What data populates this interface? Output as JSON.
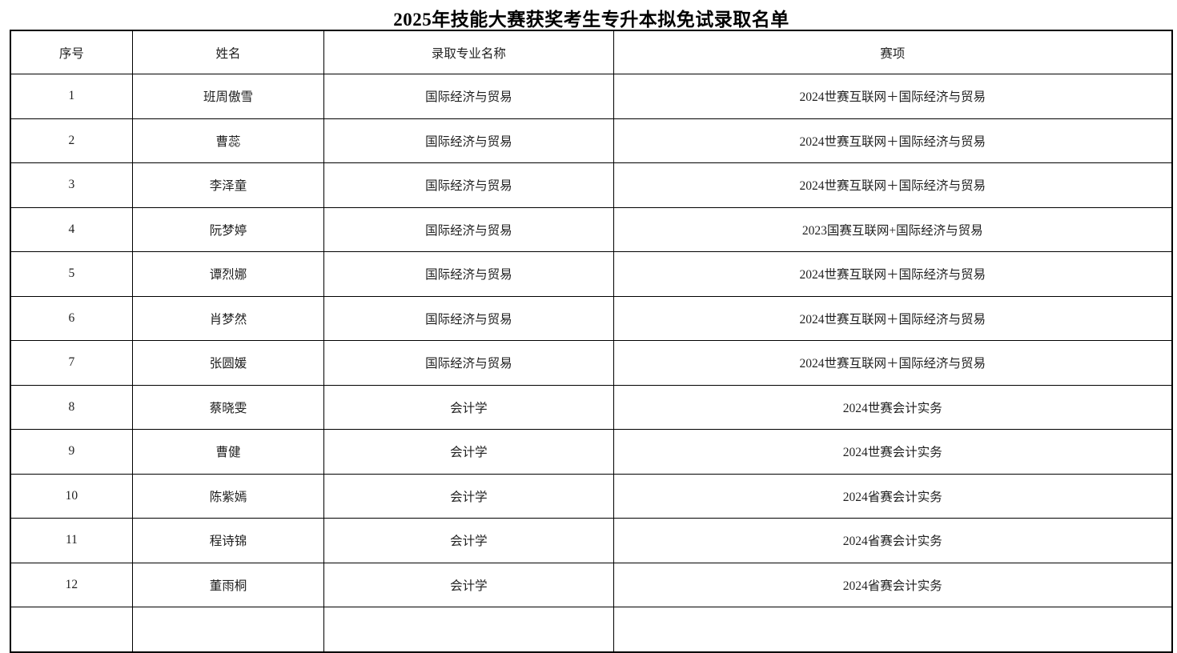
{
  "page": {
    "title": "2025年技能大赛获奖考生专升本拟免试录取名单"
  },
  "table": {
    "headers": [
      "序号",
      "姓名",
      "录取专业名称",
      "赛项"
    ],
    "rows": [
      {
        "no": "1",
        "name": "班周傲雪",
        "major": "国际经济与贸易",
        "event": "2024世赛互联网＋国际经济与贸易"
      },
      {
        "no": "2",
        "name": "曹蕊",
        "major": "国际经济与贸易",
        "event": "2024世赛互联网＋国际经济与贸易"
      },
      {
        "no": "3",
        "name": "李泽童",
        "major": "国际经济与贸易",
        "event": "2024世赛互联网＋国际经济与贸易"
      },
      {
        "no": "4",
        "name": "阮梦婷",
        "major": "国际经济与贸易",
        "event": "2023国赛互联网+国际经济与贸易"
      },
      {
        "no": "5",
        "name": "谭烈娜",
        "major": "国际经济与贸易",
        "event": "2024世赛互联网＋国际经济与贸易"
      },
      {
        "no": "6",
        "name": "肖梦然",
        "major": "国际经济与贸易",
        "event": "2024世赛互联网＋国际经济与贸易"
      },
      {
        "no": "7",
        "name": "张圆媛",
        "major": "国际经济与贸易",
        "event": "2024世赛互联网＋国际经济与贸易"
      },
      {
        "no": "8",
        "name": "蔡晓雯",
        "major": "会计学",
        "event": "2024世赛会计实务"
      },
      {
        "no": "9",
        "name": "曹健",
        "major": "会计学",
        "event": "2024世赛会计实务"
      },
      {
        "no": "10",
        "name": "陈紫嫣",
        "major": "会计学",
        "event": "2024省赛会计实务"
      },
      {
        "no": "11",
        "name": "程诗锦",
        "major": "会计学",
        "event": "2024省赛会计实务"
      },
      {
        "no": "12",
        "name": "董雨桐",
        "major": "会计学",
        "event": "2024省赛会计实务"
      }
    ]
  }
}
